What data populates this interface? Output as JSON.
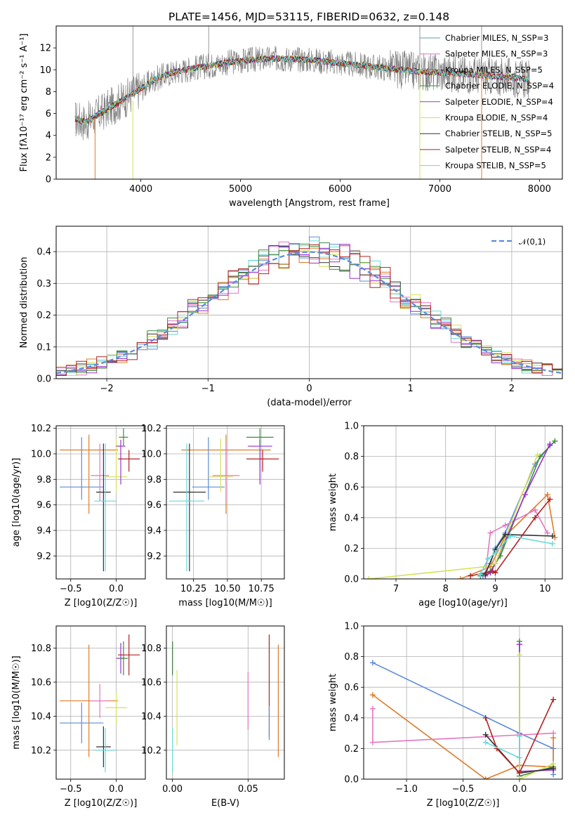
{
  "chart_data": [
    {
      "type": "line",
      "title": "PLATE=1456, MJD=53115, FIBERID=0632, z=0.148",
      "xlabel": "wavelength [Angstrom, rest frame]",
      "ylabel": "Flux [fλ10⁻¹⁷ erg cm⁻² s⁻¹ A⁻¹]",
      "xlim": [
        3150,
        8230
      ],
      "ylim": [
        0,
        14
      ],
      "xticks": [
        4000,
        5000,
        6000,
        7000,
        8000
      ],
      "yticks": [
        0,
        2,
        4,
        6,
        8,
        10,
        12
      ],
      "grid": false,
      "legend": "top-right",
      "observed_data": {
        "color": "#808080",
        "description_values": "noisy observed spectrum",
        "x": [
          3340,
          3450,
          3550,
          3700,
          3850,
          4000,
          4150,
          4300,
          4500,
          4700,
          4900,
          5100,
          5300,
          5500,
          5700,
          5900,
          6100,
          6300,
          6500,
          6700,
          6900,
          7100,
          7300,
          7500,
          7700,
          7900
        ],
        "y": [
          5.5,
          5.2,
          5.8,
          6.6,
          7.4,
          8.3,
          9.2,
          9.7,
          10.1,
          10.4,
          10.7,
          10.9,
          11.0,
          11.0,
          10.9,
          10.7,
          10.5,
          10.3,
          10.1,
          9.9,
          9.8,
          9.7,
          9.6,
          9.4,
          9.3,
          9.1
        ]
      },
      "series": [
        {
          "name": "Chabrier MILES, N_SSP=3",
          "color": "#5f9ea0"
        },
        {
          "name": "Salpeter MILES, N_SSP=3",
          "color": "#e377c2"
        },
        {
          "name": "Kroupa MILES, N_SSP=5",
          "color": "#e07b28"
        },
        {
          "name": "Chabrier ELODIE, N_SSP=4",
          "color": "#3e8b3e"
        },
        {
          "name": "Salpeter ELODIE, N_SSP=4",
          "color": "#9932cc"
        },
        {
          "name": "Kroupa ELODIE, N_SSP=4",
          "color": "#d4e157"
        },
        {
          "name": "Chabrier STELIB, N_SSP=5",
          "color": "#333333"
        },
        {
          "name": "Salpeter STELIB, N_SSP=4",
          "color": "#b22222"
        },
        {
          "name": "Kroupa STELIB, N_SSP=5",
          "color": "#66d9d9"
        }
      ]
    },
    {
      "type": "line",
      "xlabel": "(data-model)/error",
      "ylabel": "Normed distribution",
      "xlim": [
        -2.5,
        2.5
      ],
      "ylim": [
        0,
        0.48
      ],
      "xticks": [
        -2,
        -1,
        0,
        1,
        2
      ],
      "yticks": [
        0.0,
        0.1,
        0.2,
        0.3,
        0.4
      ],
      "grid": true,
      "legend": "top-right",
      "reference_curve": {
        "name": "𝒩(0,1)",
        "color": "#5b8bd9",
        "style": "dashed"
      },
      "histogram_bins": [
        -2.5,
        2.5,
        0.1
      ]
    },
    {
      "type": "scatter",
      "xlabel": "Z [log10(Z/Z☉)]",
      "ylabel": "age  [log10(age/yr)]",
      "xlim": [
        -0.66,
        0.32
      ],
      "ylim": [
        9.02,
        10.22
      ],
      "xticks": [
        -0.5,
        0.0
      ],
      "yticks": [
        9.2,
        9.4,
        9.6,
        9.8,
        10.0,
        10.2
      ],
      "grid": true,
      "points": [
        {
          "x": -0.38,
          "y": 9.74,
          "xerr": 0.24,
          "yerr_lo": 0.1,
          "yerr_hi": 0.39,
          "color": "#5b8bd9"
        },
        {
          "x": -0.3,
          "y": 10.03,
          "xerr": 0.32,
          "yerr_lo": 0.5,
          "yerr_hi": 0.12,
          "color": "#e07b28"
        },
        {
          "x": -0.18,
          "y": 9.83,
          "xerr": 0.1,
          "yerr_lo": 0.2,
          "yerr_hi": 0.25,
          "color": "#e377c2"
        },
        {
          "x": -0.14,
          "y": 9.7,
          "xerr": 0.08,
          "yerr_lo": 0.62,
          "yerr_hi": 0.38,
          "color": "#333333"
        },
        {
          "x": -0.12,
          "y": 9.63,
          "xerr": 0.12,
          "yerr_lo": 0.55,
          "yerr_hi": 0.45,
          "color": "#66d9d9"
        },
        {
          "x": 0.0,
          "y": 9.82,
          "xerr": 0.12,
          "yerr_lo": 0.12,
          "yerr_hi": 0.3,
          "color": "#d4e157"
        },
        {
          "x": 0.05,
          "y": 10.06,
          "xerr": 0.05,
          "yerr_lo": 0.3,
          "yerr_hi": 0.05,
          "color": "#9932cc"
        },
        {
          "x": 0.08,
          "y": 10.13,
          "xerr": 0.05,
          "yerr_lo": 0.07,
          "yerr_hi": 0.07,
          "color": "#3e8b3e"
        },
        {
          "x": 0.14,
          "y": 9.96,
          "xerr": 0.12,
          "yerr_lo": 0.1,
          "yerr_hi": 0.07,
          "color": "#b22222"
        }
      ]
    },
    {
      "type": "scatter",
      "xlabel": "mass [log10(M/M☉)]",
      "xlim": [
        10.05,
        10.92
      ],
      "ylim": [
        9.02,
        10.22
      ],
      "xticks": [
        10.25,
        10.5,
        10.75
      ],
      "yticks": [
        9.2,
        9.4,
        9.6,
        9.8,
        10.0,
        10.2
      ],
      "grid": true,
      "points": [
        {
          "x": 10.36,
          "y": 9.74,
          "xerr": 0.12,
          "yerr_lo": 0.1,
          "yerr_hi": 0.39,
          "color": "#5b8bd9"
        },
        {
          "x": 10.49,
          "y": 10.03,
          "xerr": 0.33,
          "yerr_lo": 0.5,
          "yerr_hi": 0.12,
          "color": "#e07b28"
        },
        {
          "x": 10.49,
          "y": 9.83,
          "xerr": 0.1,
          "yerr_lo": 0.2,
          "yerr_hi": 0.25,
          "color": "#e377c2"
        },
        {
          "x": 10.22,
          "y": 9.7,
          "xerr": 0.12,
          "yerr_lo": 0.62,
          "yerr_hi": 0.38,
          "color": "#333333"
        },
        {
          "x": 10.2,
          "y": 9.63,
          "xerr": 0.13,
          "yerr_lo": 0.55,
          "yerr_hi": 0.45,
          "color": "#66d9d9"
        },
        {
          "x": 10.45,
          "y": 9.82,
          "xerr": 0.09,
          "yerr_lo": 0.12,
          "yerr_hi": 0.3,
          "color": "#d4e157"
        },
        {
          "x": 10.74,
          "y": 10.06,
          "xerr": 0.09,
          "yerr_lo": 0.3,
          "yerr_hi": 0.05,
          "color": "#9932cc"
        },
        {
          "x": 10.74,
          "y": 10.13,
          "xerr": 0.1,
          "yerr_lo": 0.07,
          "yerr_hi": 0.07,
          "color": "#3e8b3e"
        },
        {
          "x": 10.76,
          "y": 9.96,
          "xerr": 0.12,
          "yerr_lo": 0.1,
          "yerr_hi": 0.07,
          "color": "#b22222"
        }
      ]
    },
    {
      "type": "line",
      "xlabel": "age  [log10(age/yr)]",
      "ylabel": "mass weight",
      "xlim": [
        6.35,
        10.35
      ],
      "ylim": [
        0,
        1.0
      ],
      "xticks": [
        7,
        8,
        9,
        10
      ],
      "yticks": [
        0.0,
        0.2,
        0.4,
        0.6,
        0.8,
        1.0
      ],
      "grid": true,
      "series": [
        {
          "color": "#5b8bd9",
          "x": [
            8.75,
            8.9,
            9.0,
            9.2,
            9.8,
            10.1
          ],
          "y": [
            0.02,
            0.1,
            0.2,
            0.3,
            0.75,
            0.87
          ]
        },
        {
          "color": "#e07b28",
          "x": [
            8.3,
            8.9,
            9.2,
            10.05,
            10.2
          ],
          "y": [
            0.0,
            0.08,
            0.28,
            0.55,
            0.27
          ]
        },
        {
          "color": "#e377c2",
          "x": [
            8.8,
            8.9,
            9.2,
            9.8,
            10.05
          ],
          "y": [
            0.03,
            0.3,
            0.35,
            0.45,
            0.3
          ]
        },
        {
          "color": "#3e8b3e",
          "x": [
            8.7,
            8.9,
            9.1,
            9.9,
            10.2
          ],
          "y": [
            0.02,
            0.05,
            0.15,
            0.8,
            0.9
          ]
        },
        {
          "color": "#9932cc",
          "x": [
            8.8,
            8.9,
            9.0,
            9.6,
            10.1
          ],
          "y": [
            0.02,
            0.04,
            0.1,
            0.55,
            0.88
          ]
        },
        {
          "color": "#d4e157",
          "x": [
            6.45,
            8.8,
            9.0,
            9.85
          ],
          "y": [
            0.0,
            0.08,
            0.1,
            0.81
          ]
        },
        {
          "color": "#333333",
          "x": [
            8.8,
            9.0,
            9.2,
            10.15
          ],
          "y": [
            0.03,
            0.19,
            0.29,
            0.28
          ]
        },
        {
          "color": "#b22222",
          "x": [
            8.5,
            8.95,
            9.0,
            9.8,
            10.1
          ],
          "y": [
            0.02,
            0.05,
            0.04,
            0.4,
            0.52
          ]
        },
        {
          "color": "#66d9d9",
          "x": [
            8.7,
            8.85,
            9.0,
            9.3,
            10.15
          ],
          "y": [
            0.03,
            0.13,
            0.17,
            0.28,
            0.23
          ]
        }
      ]
    },
    {
      "type": "scatter",
      "xlabel": "Z [log10(Z/Z☉)]",
      "ylabel": "mass [log10(M/M☉)]",
      "xlim": [
        -0.66,
        0.32
      ],
      "ylim": [
        10.03,
        10.93
      ],
      "xticks": [
        -0.5,
        0.0
      ],
      "yticks": [
        10.2,
        10.4,
        10.6,
        10.8
      ],
      "grid": true,
      "points": [
        {
          "x": -0.38,
          "y": 10.36,
          "xerr": 0.24,
          "yerr": 0.12,
          "color": "#5b8bd9"
        },
        {
          "x": -0.3,
          "y": 10.49,
          "xerr": 0.32,
          "yerr": 0.33,
          "color": "#e07b28"
        },
        {
          "x": -0.18,
          "y": 10.49,
          "xerr": 0.1,
          "yerr": 0.1,
          "color": "#e377c2"
        },
        {
          "x": -0.14,
          "y": 10.22,
          "xerr": 0.08,
          "yerr": 0.12,
          "color": "#333333"
        },
        {
          "x": -0.12,
          "y": 10.2,
          "xerr": 0.12,
          "yerr": 0.13,
          "color": "#66d9d9"
        },
        {
          "x": 0.0,
          "y": 10.45,
          "xerr": 0.12,
          "yerr": 0.09,
          "color": "#d4e157"
        },
        {
          "x": 0.05,
          "y": 10.74,
          "xerr": 0.05,
          "yerr": 0.09,
          "color": "#9932cc"
        },
        {
          "x": 0.08,
          "y": 10.74,
          "xerr": 0.05,
          "yerr": 0.1,
          "color": "#3e8b3e"
        },
        {
          "x": 0.14,
          "y": 10.76,
          "xerr": 0.12,
          "yerr": 0.12,
          "color": "#b22222"
        }
      ]
    },
    {
      "type": "scatter",
      "xlabel": "E(B-V)",
      "xlim": [
        -0.004,
        0.074
      ],
      "ylim": [
        10.03,
        10.93
      ],
      "xticks": [
        0.0,
        0.05
      ],
      "yticks": [
        10.2,
        10.4,
        10.6,
        10.8
      ],
      "grid": true,
      "points": [
        {
          "x": 0.0,
          "y": 10.74,
          "yerr": 0.09,
          "color": "#9932cc"
        },
        {
          "x": 0.0,
          "y": 10.74,
          "yerr": 0.1,
          "color": "#3e8b3e"
        },
        {
          "x": 0.0,
          "y": 10.2,
          "yerr": 0.13,
          "color": "#66d9d9"
        },
        {
          "x": 0.003,
          "y": 10.45,
          "yerr": 0.22,
          "color": "#d4e157"
        },
        {
          "x": 0.05,
          "y": 10.49,
          "yerr": 0.17,
          "color": "#e377c2"
        },
        {
          "x": 0.064,
          "y": 10.58,
          "yerr": 0.3,
          "color": "#b22222"
        },
        {
          "x": 0.064,
          "y": 10.36,
          "yerr": 0.1,
          "color": "#5b8bd9"
        },
        {
          "x": 0.07,
          "y": 10.49,
          "yerr": 0.33,
          "color": "#e07b28"
        }
      ]
    },
    {
      "type": "line",
      "xlabel": "Z [log10(Z/Z☉)]",
      "ylabel": "mass weight",
      "xlim": [
        -1.38,
        0.38
      ],
      "ylim": [
        0,
        1.0
      ],
      "xticks": [
        -1.0,
        -0.5,
        0.0
      ],
      "yticks": [
        0.0,
        0.2,
        0.4,
        0.6,
        0.8,
        1.0
      ],
      "grid": true,
      "series": [
        {
          "color": "#5b8bd9",
          "x": [
            -1.3,
            0.0,
            0.3,
            0.3
          ],
          "y": [
            0.76,
            0.3,
            0.2,
            0.03
          ]
        },
        {
          "color": "#e07b28",
          "x": [
            -1.3,
            -0.3,
            0.0,
            0.3,
            0.3
          ],
          "y": [
            0.55,
            0.0,
            0.09,
            0.08,
            0.27
          ]
        },
        {
          "color": "#e377c2",
          "x": [
            -1.3,
            -1.3,
            0.3
          ],
          "y": [
            0.46,
            0.24,
            0.3
          ]
        },
        {
          "color": "#3e8b3e",
          "x": [
            0.0,
            0.0,
            0.3
          ],
          "y": [
            0.9,
            0.02,
            0.08
          ]
        },
        {
          "color": "#9932cc",
          "x": [
            0.0,
            0.0,
            0.3
          ],
          "y": [
            0.88,
            0.05,
            0.06
          ]
        },
        {
          "color": "#d4e157",
          "x": [
            0.0,
            0.0,
            0.3
          ],
          "y": [
            0.81,
            0.0,
            0.1
          ]
        },
        {
          "color": "#333333",
          "x": [
            -0.3,
            0.0,
            0.3
          ],
          "y": [
            0.29,
            0.04,
            0.07
          ]
        },
        {
          "color": "#b22222",
          "x": [
            -0.3,
            -0.2,
            0.0,
            0.3
          ],
          "y": [
            0.4,
            0.2,
            0.04,
            0.52
          ]
        },
        {
          "color": "#66d9d9",
          "x": [
            -0.3,
            0.0,
            0.0
          ],
          "y": [
            0.24,
            0.14,
            0.28
          ]
        }
      ]
    }
  ]
}
